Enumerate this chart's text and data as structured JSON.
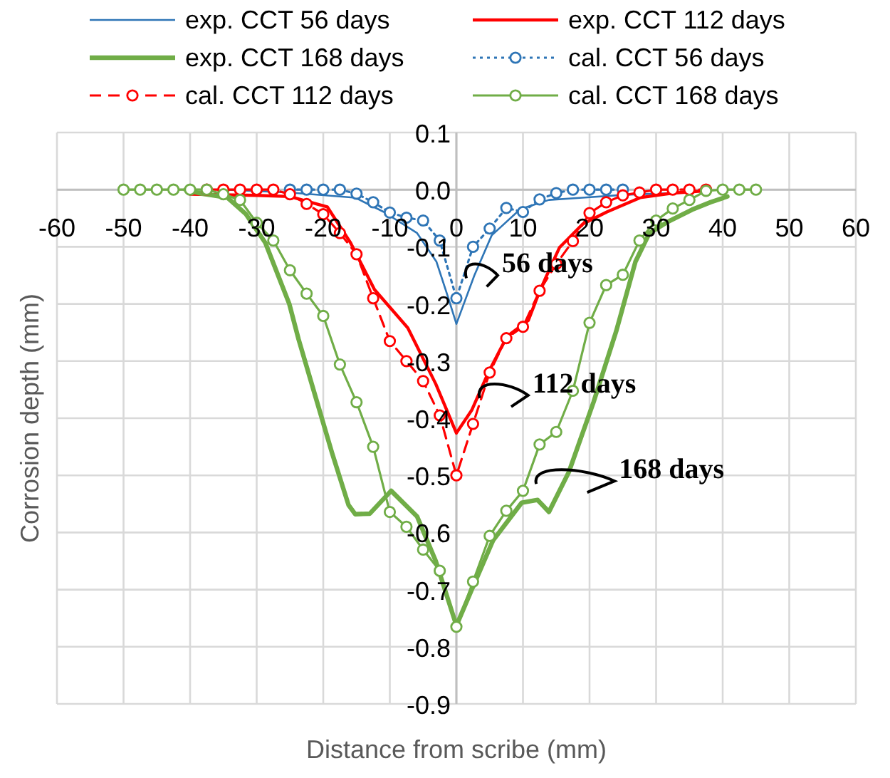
{
  "chart_data": {
    "type": "line",
    "xlabel": "Distance from scribe (mm)",
    "ylabel": "Corrosion depth (mm)",
    "xlim": [
      -60,
      60
    ],
    "xticks": [
      -60,
      -50,
      -40,
      -30,
      -20,
      -10,
      0,
      10,
      20,
      30,
      40,
      50,
      60
    ],
    "ylim": [
      -0.9,
      0.1
    ],
    "yticks": [
      0.1,
      {
        "value": 0,
        "label": "0.0"
      },
      -0.1,
      -0.2,
      -0.3,
      -0.4,
      -0.5,
      -0.6,
      -0.7,
      -0.8,
      -0.9
    ],
    "grid": true,
    "legend": "top",
    "series": [
      {
        "name": "exp. CCT 56 days",
        "color": "#2e75b6",
        "marker": "none",
        "line_style": "solid",
        "x": [
          -35,
          -25,
          -15.2,
          -10.9,
          -5.9,
          -3,
          -1.2,
          0,
          2.7,
          5.3,
          9.6,
          13.9,
          18.9,
          25.3,
          35
        ],
        "values": [
          0,
          -0.005,
          -0.014,
          -0.039,
          -0.076,
          -0.126,
          -0.19,
          -0.235,
          -0.15,
          -0.08,
          -0.034,
          -0.018,
          -0.014,
          -0.009,
          -0.005
        ]
      },
      {
        "name": "exp. CCT 112 days",
        "color": "#ff0000",
        "marker": "none",
        "line_style": "solid",
        "x": [
          -40,
          -30,
          -25,
          -19.4,
          -15.9,
          -12.3,
          -7.3,
          -3.1,
          0,
          2.3,
          4.8,
          7.6,
          10.8,
          12.6,
          15.5,
          19,
          22.6,
          27.6,
          32.5,
          37.5
        ],
        "values": [
          -0.008,
          -0.01,
          -0.012,
          -0.03,
          -0.093,
          -0.175,
          -0.242,
          -0.34,
          -0.426,
          -0.386,
          -0.32,
          -0.257,
          -0.229,
          -0.175,
          -0.101,
          -0.06,
          -0.039,
          -0.014,
          -0.006,
          -0.002
        ]
      },
      {
        "name": "exp. CCT 168 days",
        "color": "#70ad47",
        "marker": "none",
        "line_style": "solid",
        "x": [
          -40.7,
          -38.7,
          -34.4,
          -31.6,
          -28.7,
          -25.1,
          -23.7,
          -21.2,
          -18.7,
          -16.2,
          -15.2,
          -13,
          -9.8,
          -5.9,
          -3.1,
          0,
          2.6,
          5.5,
          9.8,
          12.2,
          13.9,
          16.9,
          20.6,
          24,
          26.9,
          29,
          31.8,
          35.4,
          38.2,
          40.7
        ],
        "values": [
          0,
          -0.006,
          -0.014,
          -0.043,
          -0.093,
          -0.2,
          -0.262,
          -0.361,
          -0.46,
          -0.552,
          -0.568,
          -0.567,
          -0.527,
          -0.572,
          -0.65,
          -0.763,
          -0.692,
          -0.614,
          -0.548,
          -0.543,
          -0.564,
          -0.494,
          -0.372,
          -0.248,
          -0.126,
          -0.076,
          -0.056,
          -0.035,
          -0.022,
          -0.012
        ]
      },
      {
        "name": "cal. CCT 56 days",
        "color": "#2e75b6",
        "marker": "circle",
        "line_style": "dotted",
        "x": [
          -25,
          -22.5,
          -20,
          -17.5,
          -15,
          -12.5,
          -10,
          -7.5,
          -5,
          -2.5,
          0,
          2.5,
          5,
          7.5,
          10,
          12.5,
          15,
          17.5,
          20,
          22.5,
          25
        ],
        "values": [
          0,
          0,
          0,
          0,
          -0.007,
          -0.022,
          -0.04,
          -0.049,
          -0.054,
          -0.089,
          -0.19,
          -0.1,
          -0.068,
          -0.032,
          -0.039,
          -0.017,
          -0.006,
          0,
          0,
          0,
          0
        ]
      },
      {
        "name": "cal. CCT 112 days",
        "color": "#ff0000",
        "marker": "circle",
        "line_style": "dashed",
        "x": [
          -37.5,
          -35,
          -32.5,
          -30,
          -27.5,
          -25,
          -22.5,
          -20,
          -17.5,
          -15,
          -12.5,
          -10,
          -7.5,
          -5,
          -2.5,
          0,
          2.5,
          5,
          7.5,
          10,
          12.5,
          15,
          17.5,
          20,
          22.5,
          25,
          27.5,
          30,
          32.5,
          35,
          37.5
        ],
        "values": [
          0,
          0,
          0,
          0,
          0,
          -0.008,
          -0.025,
          -0.043,
          -0.076,
          -0.113,
          -0.19,
          -0.265,
          -0.3,
          -0.335,
          -0.395,
          -0.5,
          -0.41,
          -0.32,
          -0.26,
          -0.24,
          -0.177,
          -0.13,
          -0.09,
          -0.041,
          -0.022,
          -0.01,
          -0.005,
          0,
          0,
          0,
          0
        ]
      },
      {
        "name": "cal. CCT 168 days",
        "color": "#70ad47",
        "marker": "circle",
        "line_style": "solid",
        "x": [
          -50,
          -47.5,
          -45,
          -42.5,
          -40,
          -37.5,
          -35,
          -32.5,
          -30,
          -27.5,
          -25,
          -22.5,
          -20,
          -17.5,
          -15,
          -12.5,
          -10,
          -7.5,
          -5,
          -2.5,
          0,
          2.5,
          5,
          7.5,
          10,
          12.5,
          15,
          17.5,
          20,
          22.5,
          25,
          27.5,
          30,
          32.5,
          35,
          37.5,
          40,
          42.5,
          45
        ],
        "values": [
          0,
          0,
          0,
          0,
          0,
          0,
          -0.008,
          -0.018,
          -0.058,
          -0.089,
          -0.141,
          -0.182,
          -0.221,
          -0.306,
          -0.372,
          -0.45,
          -0.564,
          -0.59,
          -0.63,
          -0.667,
          -0.765,
          -0.686,
          -0.606,
          -0.562,
          -0.527,
          -0.446,
          -0.424,
          -0.352,
          -0.233,
          -0.167,
          -0.149,
          -0.089,
          -0.054,
          -0.033,
          -0.018,
          -0.002,
          0,
          0,
          0
        ]
      }
    ],
    "annotations": [
      {
        "text": "56 days",
        "x": 1.5,
        "y": -0.14
      },
      {
        "text": "112 days",
        "x": 3.5,
        "y": -0.35
      },
      {
        "text": "168 days",
        "x": 12,
        "y": -0.5
      }
    ]
  }
}
